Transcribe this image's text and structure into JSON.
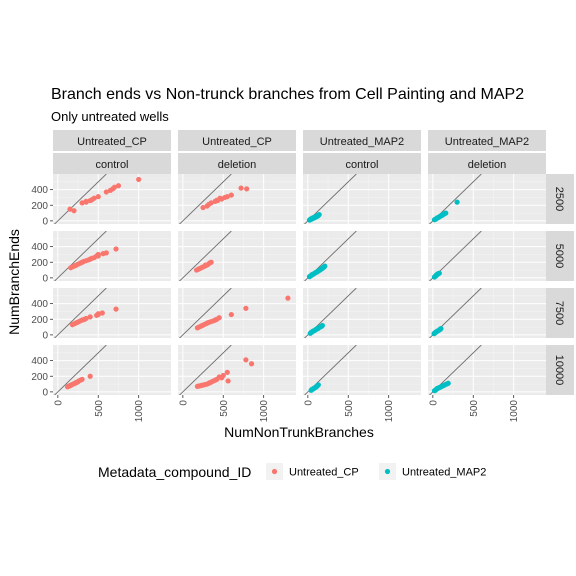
{
  "colors": {
    "Untreated_CP": "#F8766D",
    "Untreated_MAP2": "#00BFC4",
    "panel_bg": "#EBEBEB",
    "strip_bg": "#D9D9D9",
    "grid_major": "#FFFFFF",
    "identity_line": "#6E6E6E"
  },
  "chart_data": {
    "type": "scatter",
    "title": "Branch ends vs Non-trunck branches from Cell Painting and MAP2",
    "subtitle": "Only untreated wells",
    "xlabel": "NumNonTrunkBranches",
    "ylabel": "NumBranchEnds",
    "xlim": [
      -60,
      1400
    ],
    "ylim": [
      -40,
      600
    ],
    "x_ticks": [
      0,
      500,
      1000
    ],
    "y_ticks": [
      0,
      200,
      400
    ],
    "reference_line": "y = x",
    "facet_columns": [
      {
        "compound": "Untreated_CP",
        "condition": "control"
      },
      {
        "compound": "Untreated_CP",
        "condition": "deletion"
      },
      {
        "compound": "Untreated_MAP2",
        "condition": "control"
      },
      {
        "compound": "Untreated_MAP2",
        "condition": "deletion"
      }
    ],
    "facet_rows": [
      "2500",
      "5000",
      "7500",
      "10000"
    ],
    "legend": {
      "title": "Metadata_compound_ID",
      "position": "bottom",
      "entries": [
        "Untreated_CP",
        "Untreated_MAP2"
      ]
    },
    "panels": [
      {
        "row": "2500",
        "col": 0,
        "series": "Untreated_CP",
        "points": [
          [
            1000,
            530
          ],
          [
            150,
            150
          ],
          [
            200,
            130
          ],
          [
            750,
            450
          ],
          [
            700,
            430
          ],
          [
            650,
            390
          ],
          [
            600,
            370
          ],
          [
            500,
            310
          ],
          [
            450,
            290
          ],
          [
            420,
            270
          ],
          [
            400,
            260
          ],
          [
            350,
            240
          ],
          [
            300,
            230
          ],
          [
            350,
            250
          ],
          [
            680,
            410
          ]
        ]
      },
      {
        "row": "2500",
        "col": 1,
        "series": "Untreated_CP",
        "points": [
          [
            720,
            420
          ],
          [
            790,
            410
          ],
          [
            600,
            330
          ],
          [
            550,
            310
          ],
          [
            520,
            300
          ],
          [
            480,
            280
          ],
          [
            430,
            260
          ],
          [
            400,
            250
          ],
          [
            350,
            230
          ],
          [
            320,
            210
          ],
          [
            300,
            190
          ],
          [
            250,
            170
          ],
          [
            420,
            265
          ],
          [
            460,
            290
          ]
        ]
      },
      {
        "row": "2500",
        "col": 2,
        "series": "Untreated_MAP2",
        "points": [
          [
            140,
            80
          ],
          [
            130,
            70
          ],
          [
            120,
            60
          ],
          [
            110,
            55
          ],
          [
            100,
            50
          ],
          [
            90,
            45
          ],
          [
            80,
            40
          ],
          [
            70,
            35
          ],
          [
            60,
            30
          ],
          [
            50,
            25
          ],
          [
            40,
            20
          ],
          [
            30,
            15
          ],
          [
            20,
            10
          ],
          [
            110,
            65
          ],
          [
            95,
            55
          ],
          [
            75,
            45
          ],
          [
            55,
            35
          ],
          [
            35,
            25
          ]
        ]
      },
      {
        "row": "2500",
        "col": 3,
        "series": "Untreated_MAP2",
        "points": [
          [
            300,
            240
          ],
          [
            160,
            100
          ],
          [
            150,
            95
          ],
          [
            140,
            90
          ],
          [
            130,
            85
          ],
          [
            120,
            75
          ],
          [
            110,
            70
          ],
          [
            100,
            65
          ],
          [
            90,
            60
          ],
          [
            80,
            50
          ],
          [
            70,
            45
          ],
          [
            60,
            40
          ],
          [
            50,
            35
          ],
          [
            40,
            25
          ],
          [
            30,
            20
          ],
          [
            20,
            15
          ],
          [
            125,
            80
          ],
          [
            105,
            68
          ]
        ]
      },
      {
        "row": "5000",
        "col": 0,
        "series": "Untreated_CP",
        "points": [
          [
            720,
            370
          ],
          [
            600,
            320
          ],
          [
            560,
            310
          ],
          [
            500,
            300
          ],
          [
            480,
            280
          ],
          [
            450,
            260
          ],
          [
            420,
            250
          ],
          [
            400,
            240
          ],
          [
            380,
            230
          ],
          [
            350,
            220
          ],
          [
            320,
            210
          ],
          [
            300,
            200
          ],
          [
            280,
            190
          ],
          [
            260,
            180
          ],
          [
            240,
            170
          ],
          [
            220,
            160
          ],
          [
            200,
            150
          ],
          [
            180,
            140
          ],
          [
            160,
            130
          ],
          [
            500,
            280
          ]
        ]
      },
      {
        "row": "5000",
        "col": 1,
        "series": "Untreated_CP",
        "points": [
          [
            350,
            200
          ],
          [
            330,
            190
          ],
          [
            310,
            170
          ],
          [
            290,
            160
          ],
          [
            270,
            150
          ],
          [
            250,
            140
          ],
          [
            230,
            130
          ],
          [
            210,
            120
          ],
          [
            190,
            110
          ],
          [
            170,
            100
          ],
          [
            280,
            165
          ],
          [
            240,
            135
          ]
        ]
      },
      {
        "row": "5000",
        "col": 2,
        "series": "Untreated_MAP2",
        "points": [
          [
            210,
            150
          ],
          [
            200,
            140
          ],
          [
            190,
            130
          ],
          [
            180,
            125
          ],
          [
            170,
            115
          ],
          [
            160,
            110
          ],
          [
            150,
            100
          ],
          [
            140,
            95
          ],
          [
            130,
            90
          ],
          [
            120,
            80
          ],
          [
            110,
            75
          ],
          [
            100,
            70
          ],
          [
            90,
            65
          ],
          [
            80,
            55
          ],
          [
            70,
            50
          ],
          [
            60,
            45
          ],
          [
            50,
            40
          ],
          [
            40,
            30
          ],
          [
            30,
            25
          ],
          [
            20,
            15
          ]
        ]
      },
      {
        "row": "5000",
        "col": 3,
        "series": "Untreated_MAP2",
        "points": [
          [
            80,
            60
          ],
          [
            70,
            55
          ],
          [
            60,
            50
          ],
          [
            55,
            45
          ],
          [
            50,
            40
          ],
          [
            45,
            35
          ],
          [
            40,
            30
          ],
          [
            35,
            25
          ],
          [
            30,
            20
          ],
          [
            25,
            15
          ],
          [
            20,
            10
          ],
          [
            65,
            52
          ]
        ]
      },
      {
        "row": "7500",
        "col": 0,
        "series": "Untreated_CP",
        "points": [
          [
            720,
            330
          ],
          [
            550,
            280
          ],
          [
            500,
            270
          ],
          [
            480,
            250
          ],
          [
            400,
            230
          ],
          [
            350,
            210
          ],
          [
            320,
            195
          ],
          [
            300,
            190
          ],
          [
            280,
            180
          ],
          [
            260,
            170
          ],
          [
            240,
            160
          ],
          [
            220,
            150
          ],
          [
            200,
            140
          ],
          [
            180,
            130
          ],
          [
            500,
            260
          ],
          [
            330,
            200
          ]
        ]
      },
      {
        "row": "7500",
        "col": 1,
        "series": "Untreated_CP",
        "points": [
          [
            1300,
            470
          ],
          [
            780,
            340
          ],
          [
            600,
            260
          ],
          [
            450,
            220
          ],
          [
            420,
            200
          ],
          [
            400,
            190
          ],
          [
            380,
            180
          ],
          [
            350,
            170
          ],
          [
            320,
            160
          ],
          [
            300,
            150
          ],
          [
            280,
            140
          ],
          [
            260,
            130
          ],
          [
            240,
            120
          ],
          [
            220,
            110
          ],
          [
            200,
            100
          ],
          [
            180,
            90
          ]
        ]
      },
      {
        "row": "7500",
        "col": 2,
        "series": "Untreated_MAP2",
        "points": [
          [
            180,
            120
          ],
          [
            170,
            110
          ],
          [
            160,
            105
          ],
          [
            150,
            100
          ],
          [
            140,
            95
          ],
          [
            130,
            85
          ],
          [
            120,
            80
          ],
          [
            110,
            75
          ],
          [
            100,
            70
          ],
          [
            90,
            60
          ],
          [
            80,
            55
          ],
          [
            70,
            50
          ],
          [
            60,
            45
          ],
          [
            50,
            35
          ],
          [
            40,
            30
          ],
          [
            30,
            20
          ]
        ]
      },
      {
        "row": "7500",
        "col": 3,
        "series": "Untreated_MAP2",
        "points": [
          [
            100,
            80
          ],
          [
            90,
            70
          ],
          [
            80,
            65
          ],
          [
            70,
            55
          ],
          [
            60,
            50
          ],
          [
            50,
            45
          ],
          [
            40,
            35
          ],
          [
            30,
            30
          ],
          [
            25,
            25
          ],
          [
            20,
            20
          ],
          [
            15,
            15
          ],
          [
            85,
            68
          ]
        ]
      },
      {
        "row": "10000",
        "col": 0,
        "series": "Untreated_CP",
        "points": [
          [
            400,
            200
          ],
          [
            300,
            160
          ],
          [
            280,
            150
          ],
          [
            260,
            140
          ],
          [
            250,
            130
          ],
          [
            240,
            125
          ],
          [
            230,
            120
          ],
          [
            220,
            115
          ],
          [
            210,
            110
          ],
          [
            200,
            105
          ],
          [
            190,
            100
          ],
          [
            180,
            95
          ],
          [
            170,
            90
          ],
          [
            160,
            85
          ],
          [
            150,
            80
          ],
          [
            140,
            75
          ],
          [
            130,
            70
          ],
          [
            120,
            65
          ]
        ]
      },
      {
        "row": "10000",
        "col": 1,
        "series": "Untreated_CP",
        "points": [
          [
            780,
            410
          ],
          [
            850,
            360
          ],
          [
            550,
            250
          ],
          [
            500,
            210
          ],
          [
            480,
            180
          ],
          [
            450,
            190
          ],
          [
            420,
            160
          ],
          [
            400,
            150
          ],
          [
            380,
            140
          ],
          [
            360,
            130
          ],
          [
            340,
            120
          ],
          [
            320,
            110
          ],
          [
            300,
            100
          ],
          [
            280,
            95
          ],
          [
            260,
            90
          ],
          [
            240,
            85
          ],
          [
            220,
            80
          ],
          [
            200,
            75
          ],
          [
            180,
            70
          ],
          [
            560,
            140
          ]
        ]
      },
      {
        "row": "10000",
        "col": 2,
        "series": "Untreated_MAP2",
        "points": [
          [
            130,
            90
          ],
          [
            120,
            80
          ],
          [
            110,
            70
          ],
          [
            100,
            60
          ],
          [
            90,
            55
          ],
          [
            80,
            50
          ],
          [
            70,
            40
          ],
          [
            60,
            35
          ],
          [
            50,
            30
          ],
          [
            40,
            20
          ]
        ]
      },
      {
        "row": "10000",
        "col": 3,
        "series": "Untreated_MAP2",
        "points": [
          [
            190,
            110
          ],
          [
            170,
            100
          ],
          [
            150,
            90
          ],
          [
            130,
            80
          ],
          [
            110,
            70
          ],
          [
            100,
            65
          ],
          [
            90,
            60
          ],
          [
            80,
            55
          ],
          [
            70,
            50
          ],
          [
            60,
            45
          ],
          [
            50,
            40
          ],
          [
            40,
            30
          ],
          [
            30,
            20
          ],
          [
            20,
            15
          ]
        ]
      }
    ]
  }
}
